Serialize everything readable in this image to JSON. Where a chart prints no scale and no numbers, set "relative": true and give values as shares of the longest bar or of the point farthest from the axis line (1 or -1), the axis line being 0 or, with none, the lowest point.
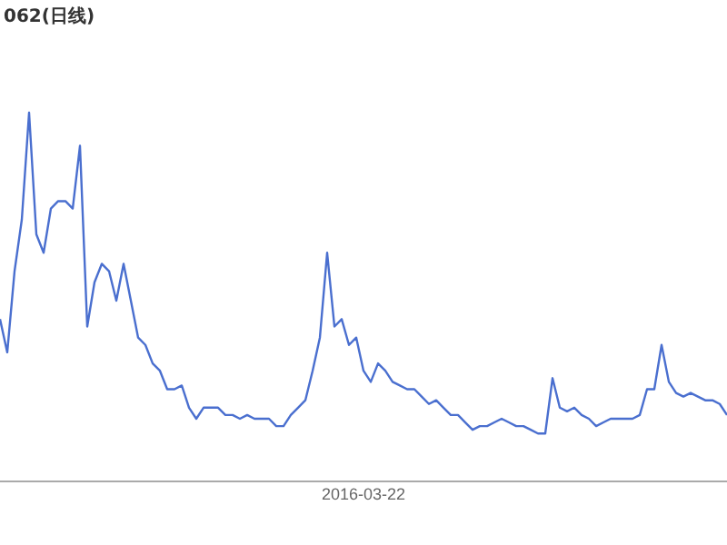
{
  "chart_data": {
    "type": "line",
    "title": "062(日线)",
    "relative": true,
    "categories": [
      null,
      null,
      null,
      null,
      null,
      null,
      null,
      null,
      null,
      null,
      null,
      null,
      null,
      null,
      null,
      null,
      null,
      null,
      null,
      null,
      null,
      null,
      null,
      null,
      null,
      null,
      null,
      null,
      null,
      null,
      null,
      null,
      null,
      null,
      null,
      null,
      null,
      null,
      null,
      null,
      null,
      null,
      null,
      null,
      null,
      null,
      null,
      null,
      null,
      null,
      null,
      null,
      null,
      null,
      null,
      null,
      null,
      null,
      null,
      null,
      null,
      null,
      null,
      null,
      null,
      null,
      null,
      null,
      null,
      null,
      null,
      null,
      null,
      null,
      null,
      null,
      null,
      null,
      null,
      null,
      null,
      null,
      null,
      null,
      null,
      null,
      null,
      null,
      null,
      null,
      null,
      null,
      null,
      null,
      null,
      null,
      null,
      null,
      null,
      null,
      null
    ],
    "annotations": [
      "2016-03-22"
    ],
    "series": [
      {
        "color": "#4a6fcf",
        "values": [
          0.44,
          0.35,
          0.57,
          0.71,
          1.0,
          0.67,
          0.62,
          0.74,
          0.76,
          0.76,
          0.74,
          0.91,
          0.42,
          0.54,
          0.59,
          0.57,
          0.49,
          0.59,
          0.49,
          0.39,
          0.37,
          0.32,
          0.3,
          0.25,
          0.25,
          0.26,
          0.2,
          0.17,
          0.2,
          0.2,
          0.2,
          0.18,
          0.18,
          0.17,
          0.18,
          0.17,
          0.17,
          0.17,
          0.15,
          0.15,
          0.18,
          0.2,
          0.22,
          0.3,
          0.39,
          0.62,
          0.42,
          0.44,
          0.37,
          0.39,
          0.3,
          0.27,
          0.32,
          0.3,
          0.27,
          0.26,
          0.25,
          0.25,
          0.23,
          0.21,
          0.22,
          0.2,
          0.18,
          0.18,
          0.16,
          0.14,
          0.15,
          0.15,
          0.16,
          0.17,
          0.16,
          0.15,
          0.15,
          0.14,
          0.13,
          0.13,
          0.28,
          0.2,
          0.19,
          0.2,
          0.18,
          0.17,
          0.15,
          0.16,
          0.17,
          0.17,
          0.17,
          0.17,
          0.18,
          0.25,
          0.25,
          0.37,
          0.27,
          0.24,
          0.23,
          0.24,
          0.23,
          0.22,
          0.22,
          0.21,
          0.18
        ]
      }
    ]
  }
}
